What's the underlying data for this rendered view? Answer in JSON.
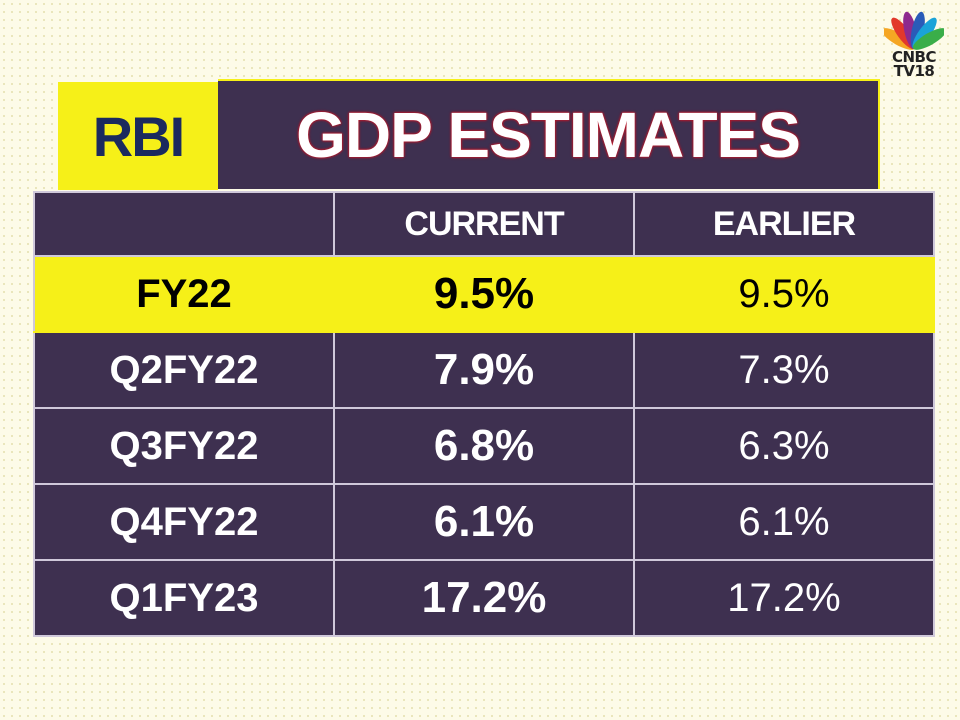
{
  "brand": {
    "logo_text_1": "CNBC",
    "logo_text_2": "TV18",
    "peacock_colors": [
      "#f5a623",
      "#e2382b",
      "#8e2a8e",
      "#2a5bb8",
      "#1aa3d8",
      "#3aae49"
    ]
  },
  "header": {
    "badge": "RBI",
    "title": "GDP ESTIMATES"
  },
  "table": {
    "columns": [
      "",
      "CURRENT",
      "EARLIER"
    ],
    "rows": [
      {
        "label": "FY22",
        "current": "9.5%",
        "earlier": "9.5%",
        "highlight": true
      },
      {
        "label": "Q2FY22",
        "current": "7.9%",
        "earlier": "7.3%"
      },
      {
        "label": "Q3FY22",
        "current": "6.8%",
        "earlier": "6.3%"
      },
      {
        "label": "Q4FY22",
        "current": "6.1%",
        "earlier": "6.1%"
      },
      {
        "label": "Q1FY23",
        "current": "17.2%",
        "earlier": "17.2%"
      }
    ]
  },
  "colors": {
    "purple": "#3e3050",
    "yellow": "#f6f018",
    "navy": "#1b2a5e"
  }
}
